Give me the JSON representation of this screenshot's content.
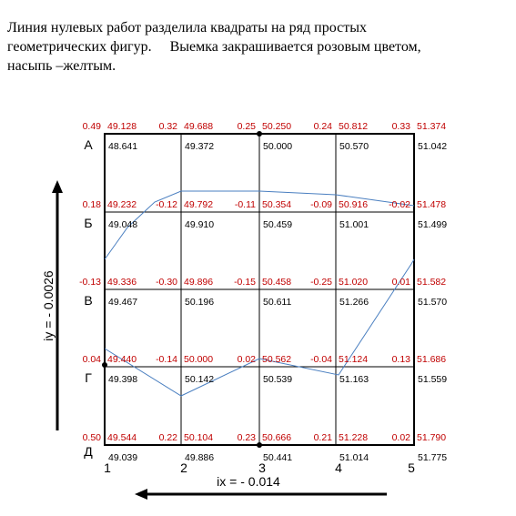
{
  "header": {
    "lines": [
      "Линия нулевых работ разделила квадраты на ряд простых",
      "геометрических фигур.     Выемка закрашивается розовым цветом,",
      "насыпь –желтым."
    ]
  },
  "grid": {
    "columns": [
      "1",
      "2",
      "3",
      "4",
      "5"
    ],
    "rows": [
      {
        "label": "А",
        "nodes": [
          {
            "work": "0.49",
            "design": "49.128",
            "ground": "48.641"
          },
          {
            "work": "0.32",
            "design": "49.688",
            "ground": "49.372"
          },
          {
            "work": "0.25",
            "design": "50.250",
            "ground": "50.000"
          },
          {
            "work": "0.24",
            "design": "50.812",
            "ground": "50.570"
          },
          {
            "work": "0.33",
            "design": "51.374",
            "ground": "51.042"
          }
        ]
      },
      {
        "label": "Б",
        "nodes": [
          {
            "work": "0.18",
            "design": "49.232",
            "ground": "49.048"
          },
          {
            "work": "-0.12",
            "design": "49.792",
            "ground": "49.910"
          },
          {
            "work": "-0.11",
            "design": "50.354",
            "ground": "50.459"
          },
          {
            "work": "-0.09",
            "design": "50.916",
            "ground": "51.001"
          },
          {
            "work": "-0.02",
            "design": "51.478",
            "ground": "51.499"
          }
        ]
      },
      {
        "label": "В",
        "nodes": [
          {
            "work": "-0.13",
            "design": "49.336",
            "ground": "49.467"
          },
          {
            "work": "-0.30",
            "design": "49.896",
            "ground": "50.196"
          },
          {
            "work": "-0.15",
            "design": "50.458",
            "ground": "50.611"
          },
          {
            "work": "-0.25",
            "design": "51.020",
            "ground": "51.266"
          },
          {
            "work": "0.01",
            "design": "51.582",
            "ground": "51.570"
          }
        ]
      },
      {
        "label": "Г",
        "nodes": [
          {
            "work": "0.04",
            "design": "49.440",
            "ground": "49.398"
          },
          {
            "work": "-0.14",
            "design": "50.000",
            "ground": "50.142"
          },
          {
            "work": "0.02",
            "design": "50.562",
            "ground": "50.539"
          },
          {
            "work": "-0.04",
            "design": "51.124",
            "ground": "51.163"
          },
          {
            "work": "0.13",
            "design": "51.686",
            "ground": "51.559"
          }
        ]
      },
      {
        "label": "Д",
        "nodes": [
          {
            "work": "0.50",
            "design": "49.544",
            "ground": "49.039"
          },
          {
            "work": "0.22",
            "design": "50.104",
            "ground": "49.886"
          },
          {
            "work": "0.23",
            "design": "50.666",
            "ground": "50.441"
          },
          {
            "work": "0.21",
            "design": "51.228",
            "ground": "51.014"
          },
          {
            "work": "0.02",
            "design": "51.790",
            "ground": "51.775"
          }
        ]
      }
    ]
  },
  "slopes": {
    "iy": "iy = - 0.0026",
    "ix": "ix = - 0.014"
  }
}
